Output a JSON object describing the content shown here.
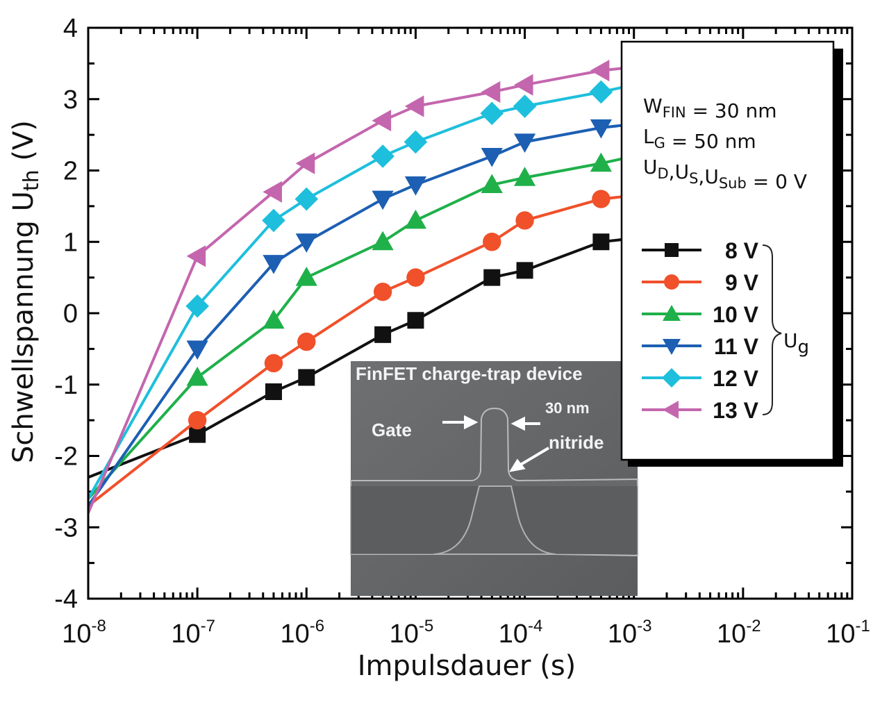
{
  "chart_data": {
    "type": "line",
    "title": "",
    "xlabel": "Impulsdauer (s)",
    "ylabel_main": "Schwellspannung U",
    "ylabel_sub": "th",
    "ylabel_unit": " (V)",
    "xscale": "log",
    "xlim": [
      1e-08,
      0.1
    ],
    "ylim": [
      -4,
      4
    ],
    "x_ticks": [
      {
        "base": "10",
        "exp": "-8"
      },
      {
        "base": "10",
        "exp": "-7"
      },
      {
        "base": "10",
        "exp": "-6"
      },
      {
        "base": "10",
        "exp": "-5"
      },
      {
        "base": "10",
        "exp": "-4"
      },
      {
        "base": "10",
        "exp": "-3"
      },
      {
        "base": "10",
        "exp": "-2"
      },
      {
        "base": "10",
        "exp": "-1"
      }
    ],
    "y_ticks": [
      "4",
      "3",
      "2",
      "1",
      "0",
      "-1",
      "-2",
      "-3",
      "-4"
    ],
    "x": [
      1e-08,
      1e-07,
      5e-07,
      1e-06,
      5e-06,
      1e-05,
      5e-05,
      0.0001,
      0.0005,
      0.001
    ],
    "series": [
      {
        "name": "8 V",
        "color": "#111111",
        "marker": "square",
        "values": [
          -2.3,
          -1.7,
          -1.1,
          -0.9,
          -0.3,
          -0.1,
          0.5,
          0.6,
          1.0,
          1.05
        ]
      },
      {
        "name": "9 V",
        "color": "#f0502a",
        "marker": "circle",
        "values": [
          -2.7,
          -1.5,
          -0.7,
          -0.4,
          0.3,
          0.5,
          1.0,
          1.3,
          1.6,
          1.65
        ]
      },
      {
        "name": "10 V",
        "color": "#1fb04a",
        "marker": "triangle-up",
        "values": [
          -2.6,
          -0.9,
          -0.1,
          0.5,
          1.0,
          1.3,
          1.8,
          1.9,
          2.1,
          2.2
        ]
      },
      {
        "name": "11 V",
        "color": "#1c5fb3",
        "marker": "triangle-down",
        "values": [
          -2.7,
          -0.5,
          0.7,
          1.0,
          1.6,
          1.8,
          2.2,
          2.4,
          2.6,
          2.65
        ]
      },
      {
        "name": "12 V",
        "color": "#1ebfdc",
        "marker": "diamond",
        "values": [
          -2.6,
          0.1,
          1.3,
          1.6,
          2.2,
          2.4,
          2.8,
          2.9,
          3.1,
          3.2
        ]
      },
      {
        "name": "13 V",
        "color": "#c466ae",
        "marker": "triangle-left",
        "values": [
          -2.8,
          0.8,
          1.7,
          2.1,
          2.7,
          2.9,
          3.1,
          3.2,
          3.4,
          3.45
        ]
      }
    ],
    "legend_group_label_main": "U",
    "legend_group_label_sub": "g",
    "legend_placement": "right",
    "grid": false,
    "parameters": [
      {
        "main": "W",
        "sub": "FIN",
        "rest": " = 30 nm"
      },
      {
        "main": "L",
        "sub": "G",
        "rest": " = 50 nm"
      },
      {
        "parts": [
          {
            "main": "U",
            "sub": "D"
          },
          {
            "main": ",U",
            "sub": "S"
          },
          {
            "main": ",U",
            "sub": "Sub"
          }
        ],
        "rest": " = 0 V"
      }
    ],
    "inset": {
      "title": "FinFET charge-trap device",
      "label_gate": "Gate",
      "label_width": "30 nm",
      "label_nitride": "nitride"
    }
  }
}
